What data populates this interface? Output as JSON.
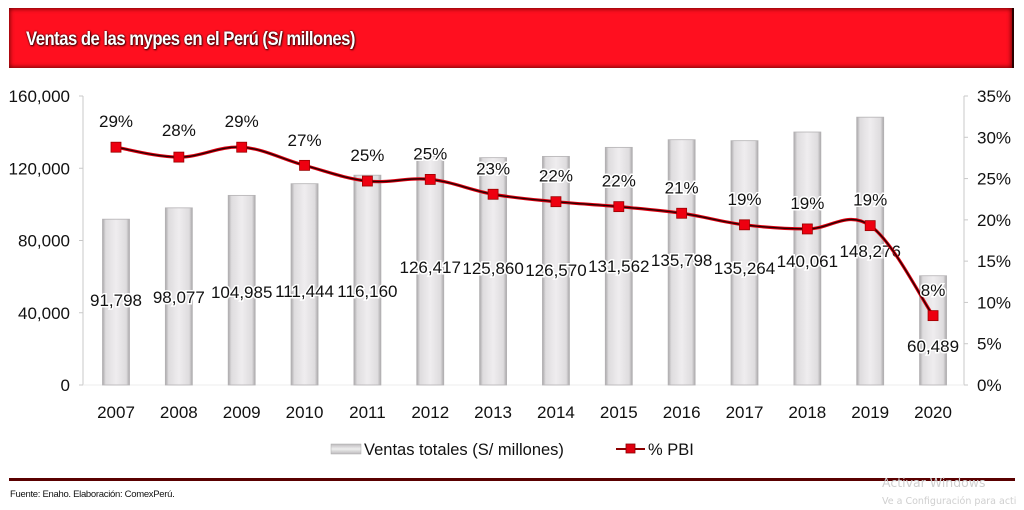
{
  "header": {
    "title": "Ventas de las mypes en el Perú (S/ millones)",
    "banner_color": "#ff0f1f"
  },
  "chart_data": {
    "type": "bar",
    "title": "Ventas de las mypes en el Perú (S/ millones)",
    "xlabel": "",
    "ylabel": "",
    "categories": [
      "2007",
      "2008",
      "2009",
      "2010",
      "2011",
      "2012",
      "2013",
      "2014",
      "2015",
      "2016",
      "2017",
      "2018",
      "2019",
      "2020"
    ],
    "series": [
      {
        "name": "Ventas totales (S/ millones)",
        "type": "bar",
        "axis": "left",
        "color": "#e8e6e8",
        "values": [
          91798,
          98077,
          104985,
          111444,
          116160,
          126417,
          125860,
          126570,
          131562,
          135798,
          135264,
          140061,
          148276,
          60489
        ],
        "labels": [
          "91,798",
          "98,077",
          "104,985",
          "111,444",
          "116,160",
          "126,417",
          "125,860",
          "126,570",
          "131,562",
          "135,798",
          "135,264",
          "140,061",
          "148,276",
          "60,489"
        ]
      },
      {
        "name": "% PBI",
        "type": "line",
        "axis": "right",
        "color": "#e00010",
        "values": [
          28.8,
          27.6,
          28.8,
          26.6,
          24.7,
          24.9,
          23.1,
          22.2,
          21.6,
          20.8,
          19.4,
          18.9,
          19.3,
          8.4
        ],
        "labels": [
          "29%",
          "28%",
          "29%",
          "27%",
          "25%",
          "25%",
          "23%",
          "22%",
          "22%",
          "21%",
          "19%",
          "19%",
          "19%",
          "8%"
        ]
      }
    ],
    "y_left": {
      "ylim": [
        0,
        160000
      ],
      "ticks": [
        0,
        40000,
        80000,
        120000,
        160000
      ],
      "tick_labels": [
        "0",
        "40,000",
        "80,000",
        "120,000",
        "160,000"
      ]
    },
    "y_right": {
      "ylim": [
        0,
        35
      ],
      "ticks": [
        0,
        5,
        10,
        15,
        20,
        25,
        30,
        35
      ],
      "tick_labels": [
        "0%",
        "5%",
        "10%",
        "15%",
        "20%",
        "25%",
        "30%",
        "35%"
      ]
    },
    "grid": false,
    "legend": {
      "placement": "bottom",
      "entries": [
        "Ventas totales (S/ millones)",
        "% PBI"
      ]
    }
  },
  "footer": {
    "source": "Fuente: Enaho. Elaboración: ComexPerú."
  },
  "watermark": {
    "line1": "Activar Windows",
    "line2": "Ve a Configuración para acti"
  }
}
